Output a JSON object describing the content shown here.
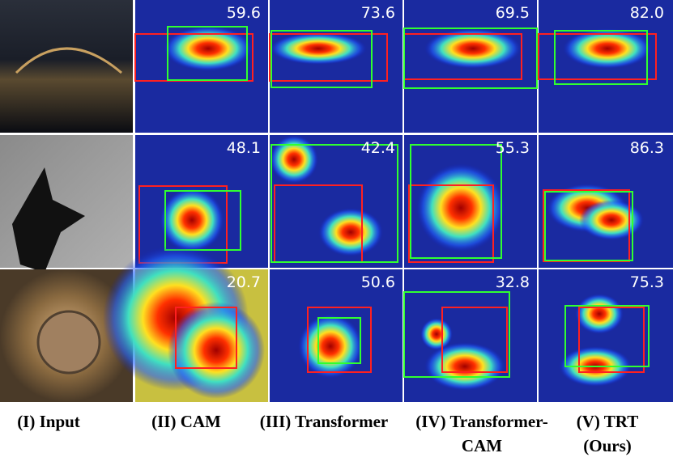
{
  "grid": {
    "rows": [
      {
        "scores": [
          "59.6",
          "73.6",
          "69.5",
          "82.0"
        ]
      },
      {
        "scores": [
          "48.1",
          "42.4",
          "55.3",
          "86.3"
        ]
      },
      {
        "scores": [
          "20.7",
          "50.6",
          "32.8",
          "75.3"
        ]
      }
    ]
  },
  "columns": [
    {
      "lines": [
        "(I) Input"
      ]
    },
    {
      "lines": [
        "(II) CAM"
      ]
    },
    {
      "lines": [
        "(III) Transformer"
      ]
    },
    {
      "lines": [
        "(IV) Transformer-",
        "CAM"
      ]
    },
    {
      "lines": [
        "(V) TRT",
        "(Ours)"
      ]
    }
  ]
}
